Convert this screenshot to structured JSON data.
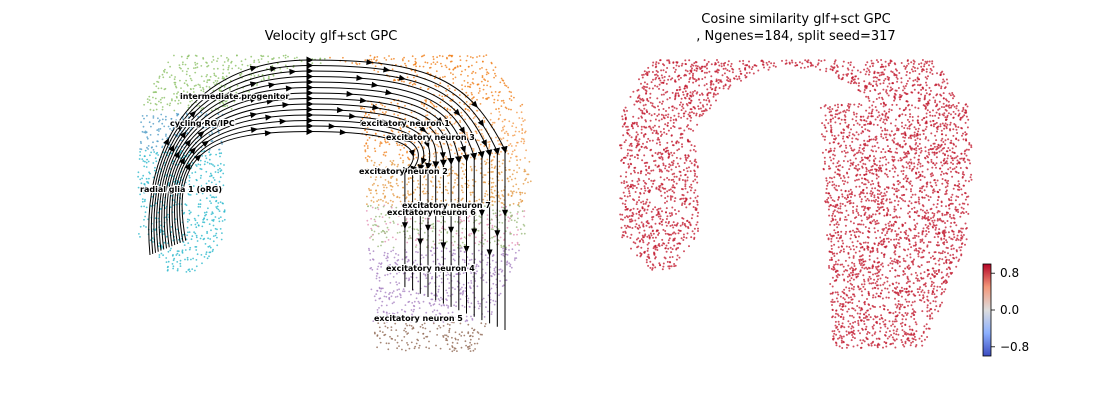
{
  "chart_data": [
    {
      "type": "scatter",
      "title": "Velocity glf+sct GPC",
      "overlay": "streamlines",
      "axes": "off",
      "clusters": [
        {
          "name": "intermediate progenitor",
          "color": "#8cc067"
        },
        {
          "name": "cycling RG/IPC",
          "color": "#4f9bc5"
        },
        {
          "name": "radial glia 1 (oRG)",
          "color": "#29b8cc"
        },
        {
          "name": "excitatory neuron 1",
          "color": "#f07f1a"
        },
        {
          "name": "excitatory neuron 3",
          "color": "#f29a4a"
        },
        {
          "name": "excitatory neuron 2",
          "color": "#e49a45"
        },
        {
          "name": "excitatory neuron 7",
          "color": "#e28fb4"
        },
        {
          "name": "excitatory neuron 6",
          "color": "#9ab87a"
        },
        {
          "name": "excitatory neuron 4",
          "color": "#a882c2"
        },
        {
          "name": "excitatory neuron 5",
          "color": "#8f6651"
        }
      ],
      "streamline_color": "#000000"
    },
    {
      "type": "scatter",
      "title": "Cosine similarity glf+sct GPC",
      "subtitle": ", Ngenes=184, split seed=317",
      "axes": "off",
      "point_color": "#c0142a",
      "colorbar": {
        "colormap": "coolwarm",
        "range": [
          -1,
          1
        ],
        "ticks": [
          "0.8",
          "0.0",
          "−0.8"
        ],
        "tick_values": [
          0.8,
          0.0,
          -0.8
        ]
      }
    }
  ]
}
